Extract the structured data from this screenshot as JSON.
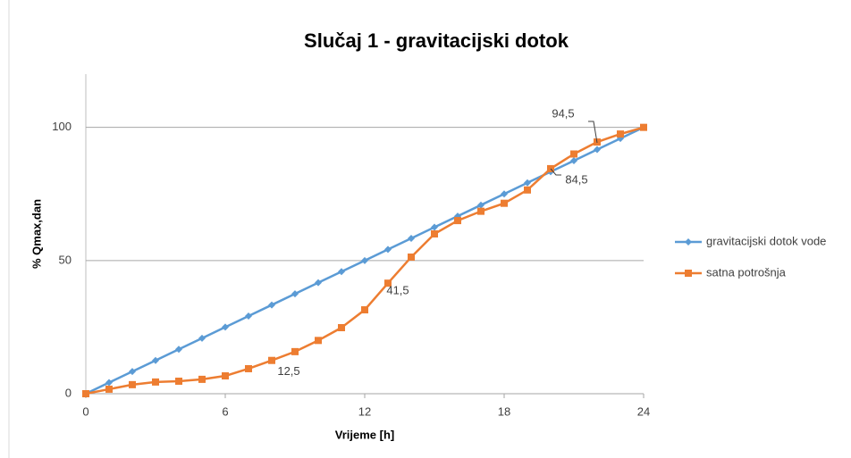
{
  "chart_data": {
    "type": "line",
    "title": "Slučaj 1 - gravitacijski dotok",
    "x_label": "Vrijeme [h]",
    "y_label": "% Qmax,dan",
    "x": [
      0,
      1,
      2,
      3,
      4,
      5,
      6,
      7,
      8,
      9,
      10,
      11,
      12,
      13,
      14,
      15,
      16,
      17,
      18,
      19,
      20,
      21,
      22,
      23,
      24
    ],
    "series": [
      {
        "name": "gravitacijski dotok vode",
        "color": "#5b9bd5",
        "marker": "diamond",
        "values": [
          0,
          4.17,
          8.33,
          12.5,
          16.67,
          20.83,
          25,
          29.17,
          33.33,
          37.5,
          41.67,
          45.83,
          50,
          54.17,
          58.33,
          62.5,
          66.67,
          70.83,
          75,
          79.17,
          83.33,
          87.5,
          91.67,
          95.83,
          100
        ]
      },
      {
        "name": "satna potrošnja",
        "color": "#ed7d31",
        "marker": "square",
        "values": [
          0,
          1.7,
          3.4,
          4.4,
          4.7,
          5.4,
          6.7,
          9.4,
          12.5,
          15.8,
          20,
          24.8,
          31.5,
          41.5,
          51.3,
          60,
          65,
          68.5,
          71.5,
          76.5,
          84.5,
          90,
          94.5,
          97.5,
          100
        ],
        "value_labels": [
          null,
          null,
          null,
          null,
          null,
          null,
          null,
          null,
          "12,5",
          null,
          null,
          null,
          null,
          "41,5",
          null,
          null,
          null,
          null,
          null,
          null,
          "84,5",
          null,
          "94,5",
          null,
          null
        ]
      }
    ],
    "xlim": [
      0,
      24
    ],
    "xticks": [
      0,
      6,
      12,
      18,
      24
    ],
    "ylim": [
      0,
      120
    ],
    "yticks": [
      0,
      50,
      100
    ],
    "grid": true,
    "legend": "right"
  }
}
